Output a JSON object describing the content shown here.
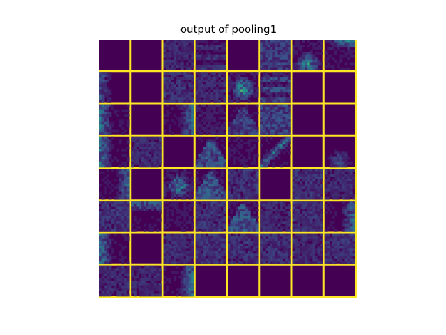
{
  "chart_data": {
    "type": "heatmap",
    "title": "output of pooling1",
    "rows": 8,
    "cols": 8,
    "colormap": "viridis",
    "separator_color": "#fde725",
    "background_color": "#440154",
    "tiles": [
      [
        {
          "m": 0,
          "p": "empty"
        },
        {
          "m": 0,
          "p": "empty"
        },
        {
          "m": 0.3,
          "p": "texture"
        },
        {
          "m": 0.25,
          "p": "stripes"
        },
        {
          "m": 0,
          "p": "empty"
        },
        {
          "m": 0.45,
          "p": "texture"
        },
        {
          "m": 0.55,
          "p": "bottom-blob"
        },
        {
          "m": 0.5,
          "p": "top-right"
        }
      ],
      [
        {
          "m": 0.3,
          "p": "left-edge"
        },
        {
          "m": 0,
          "p": "empty"
        },
        {
          "m": 0.35,
          "p": "texture"
        },
        {
          "m": 0.3,
          "p": "texture"
        },
        {
          "m": 0.7,
          "p": "center-blob"
        },
        {
          "m": 0.4,
          "p": "stripes"
        },
        {
          "m": 0,
          "p": "empty"
        },
        {
          "m": 0,
          "p": "empty"
        }
      ],
      [
        {
          "m": 0.45,
          "p": "left-edge"
        },
        {
          "m": 0,
          "p": "empty"
        },
        {
          "m": 0.4,
          "p": "right-edge"
        },
        {
          "m": 0.2,
          "p": "texture"
        },
        {
          "m": 0.3,
          "p": "triangle"
        },
        {
          "m": 0.5,
          "p": "texture"
        },
        {
          "m": 0,
          "p": "empty"
        },
        {
          "m": 0,
          "p": "empty"
        }
      ],
      [
        {
          "m": 0.45,
          "p": "left-edge"
        },
        {
          "m": 0.3,
          "p": "texture"
        },
        {
          "m": 0,
          "p": "empty"
        },
        {
          "m": 0.4,
          "p": "triangle"
        },
        {
          "m": 0.15,
          "p": "texture"
        },
        {
          "m": 0.4,
          "p": "diagonal"
        },
        {
          "m": 0,
          "p": "empty"
        },
        {
          "m": 0.3,
          "p": "bottom-blob"
        }
      ],
      [
        {
          "m": 0.4,
          "p": "right-edge"
        },
        {
          "m": 0,
          "p": "empty"
        },
        {
          "m": 0.65,
          "p": "center-blob"
        },
        {
          "m": 0.4,
          "p": "triangle"
        },
        {
          "m": 0.35,
          "p": "texture"
        },
        {
          "m": 0,
          "p": "empty"
        },
        {
          "m": 0.35,
          "p": "texture"
        },
        {
          "m": 0.3,
          "p": "texture"
        }
      ],
      [
        {
          "m": 0.35,
          "p": "texture"
        },
        {
          "m": 0.4,
          "p": "top-edge"
        },
        {
          "m": 0.15,
          "p": "texture"
        },
        {
          "m": 0.35,
          "p": "texture"
        },
        {
          "m": 0.4,
          "p": "triangle"
        },
        {
          "m": 0.3,
          "p": "texture"
        },
        {
          "m": 0.35,
          "p": "texture"
        },
        {
          "m": 0.4,
          "p": "right-edge"
        }
      ],
      [
        {
          "m": 0.45,
          "p": "left-edge"
        },
        {
          "m": 0,
          "p": "empty"
        },
        {
          "m": 0.3,
          "p": "texture"
        },
        {
          "m": 0.35,
          "p": "texture"
        },
        {
          "m": 0.35,
          "p": "texture"
        },
        {
          "m": 0.35,
          "p": "texture"
        },
        {
          "m": 0.3,
          "p": "texture"
        },
        {
          "m": 0.35,
          "p": "texture"
        }
      ],
      [
        {
          "m": 0.3,
          "p": "texture"
        },
        {
          "m": 0.3,
          "p": "texture"
        },
        {
          "m": 0.45,
          "p": "right-edge"
        },
        {
          "m": 0,
          "p": "empty"
        },
        {
          "m": 0,
          "p": "empty"
        },
        {
          "m": 0,
          "p": "empty"
        },
        {
          "m": 0,
          "p": "empty"
        },
        {
          "m": 0,
          "p": "empty"
        }
      ]
    ]
  }
}
